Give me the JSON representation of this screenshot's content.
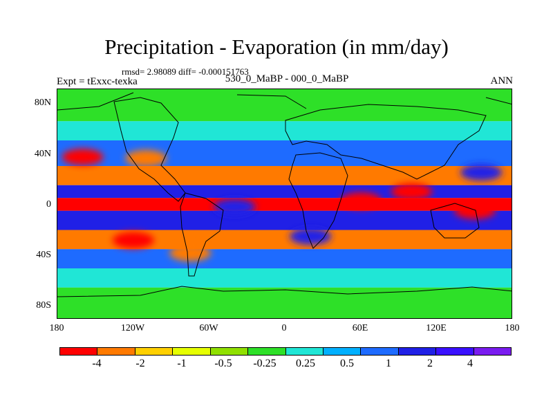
{
  "title": "Precipitation - Evaporation (in mm/day)",
  "stats": "rmsd= 2.98089 diff= -0.000151763",
  "experiment_label": "Expt = tExxc-texka",
  "comparison_label": "530_0_MaBP - 000_0_MaBP",
  "season": "ANN",
  "lat_labels": [
    "80N",
    "40N",
    "0",
    "40S",
    "80S"
  ],
  "lon_labels": [
    "180",
    "120W",
    "60W",
    "0",
    "60E",
    "120E",
    "180"
  ],
  "colorbar": {
    "colors": [
      "#ff0000",
      "#ff7a00",
      "#ffd000",
      "#e6ff00",
      "#90e000",
      "#2ee028",
      "#dcdcdc",
      "#20e6d6",
      "#00b0ff",
      "#1e6bff",
      "#2020e6",
      "#3a10ff",
      "#7a1cf0"
    ],
    "labels": [
      "-4",
      "-2",
      "-1",
      "-0.5",
      "-0.25",
      "0.25",
      "0.5",
      "1",
      "2",
      "4"
    ]
  },
  "chart_data": {
    "type": "heatmap",
    "title": "Precipitation - Evaporation (in mm/day)",
    "variable": "Precipitation - Evaporation",
    "units": "mm/day",
    "projection": "cylindrical equidistant",
    "x_range": [
      -180,
      180
    ],
    "y_range": [
      -90,
      90
    ],
    "xticks": [
      -180,
      -120,
      -60,
      0,
      60,
      120,
      180
    ],
    "yticks": [
      80,
      40,
      0,
      -40,
      -80
    ],
    "levels": [
      -4,
      -2,
      -1,
      -0.5,
      -0.25,
      0.25,
      0.5,
      1,
      2,
      4
    ],
    "bands": [
      {
        "lat": [
          65,
          90
        ],
        "value": 0
      },
      {
        "lat": [
          50,
          65
        ],
        "value": 0.6
      },
      {
        "lat": [
          30,
          50
        ],
        "value": 2.5
      },
      {
        "lat": [
          15,
          30
        ],
        "value": -3
      },
      {
        "lat": [
          5,
          15
        ],
        "value": 4.5
      },
      {
        "lat": [
          -5,
          5
        ],
        "value": -4.5
      },
      {
        "lat": [
          -20,
          -5
        ],
        "value": 5
      },
      {
        "lat": [
          -35,
          -20
        ],
        "value": -3
      },
      {
        "lat": [
          -50,
          -35
        ],
        "value": 3
      },
      {
        "lat": [
          -65,
          -50
        ],
        "value": 0.7
      },
      {
        "lat": [
          -90,
          -65
        ],
        "value": 0
      }
    ],
    "anomalies": [
      {
        "lon": -160,
        "lat": 37,
        "value": -4.5
      },
      {
        "lon": -110,
        "lat": 36,
        "value": -2.5
      },
      {
        "lon": 60,
        "lat": 3,
        "value": -5
      },
      {
        "lon": 100,
        "lat": 10,
        "value": -5
      },
      {
        "lon": 150,
        "lat": -5,
        "value": -4.5
      },
      {
        "lon": -120,
        "lat": -28,
        "value": -4.5
      },
      {
        "lon": -75,
        "lat": -38,
        "value": -4
      },
      {
        "lon": -40,
        "lat": -2,
        "value": 4.5
      },
      {
        "lon": 155,
        "lat": 25,
        "value": 4.5
      },
      {
        "lon": 20,
        "lat": -25,
        "value": 4
      }
    ]
  }
}
